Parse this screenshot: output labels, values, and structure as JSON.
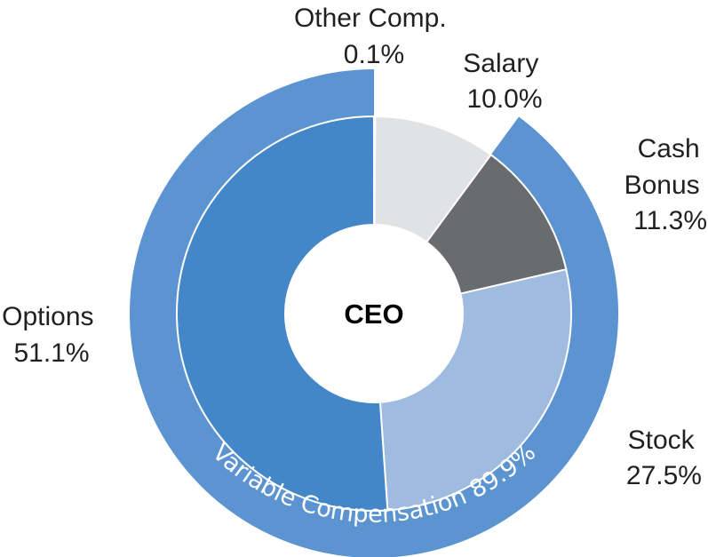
{
  "chart_data": {
    "type": "pie",
    "center_label": "CEO",
    "slices": [
      {
        "name": "Other Comp.",
        "value": 0.1,
        "label": "0.1%",
        "color": "#ffffff"
      },
      {
        "name": "Salary",
        "value": 10.0,
        "label": "10.0%",
        "color": "#e1e2e3"
      },
      {
        "name": "Cash Bonus",
        "value": 11.3,
        "label": "11.3%",
        "color": "#6a6b6f"
      },
      {
        "name": "Stock",
        "value": 27.5,
        "label": "27.5%",
        "color": "#9fbbe0"
      },
      {
        "name": "Options",
        "value": 51.1,
        "label": "51.1%",
        "color": "#4387c8"
      }
    ],
    "outer_ring": {
      "label": "Variable Compensation 89.9%",
      "value": 89.9,
      "color": "#5b94d0"
    }
  }
}
